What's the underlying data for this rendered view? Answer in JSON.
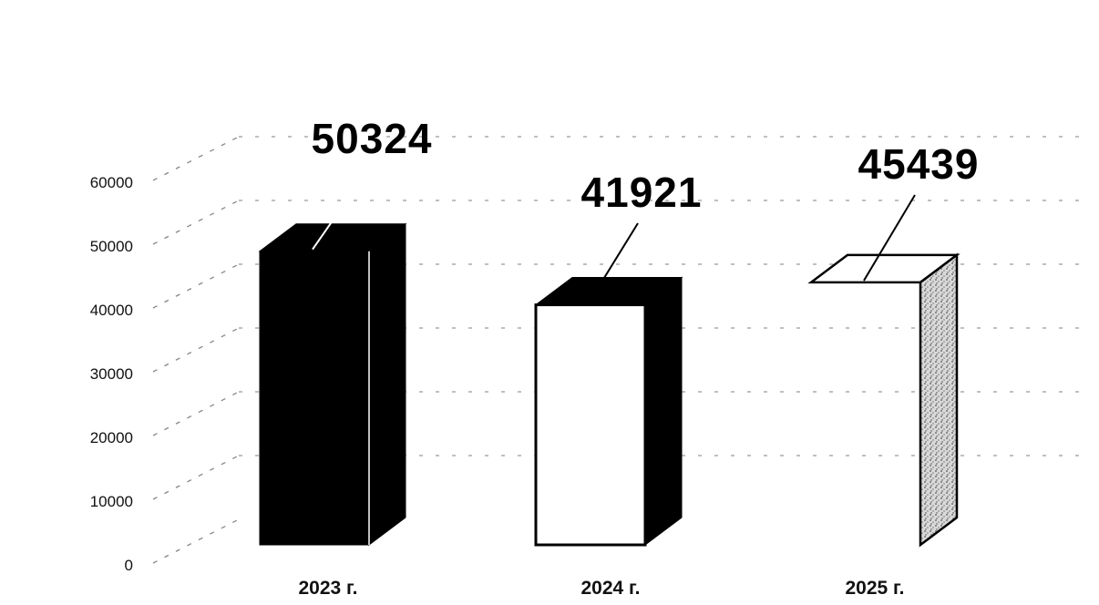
{
  "chart_data": {
    "type": "bar",
    "style": "3d-column",
    "categories": [
      "2023 г.",
      "2024 г.",
      "2025 г."
    ],
    "values": [
      50324,
      41921,
      45439
    ],
    "data_labels": [
      "50324",
      "41921",
      "45439"
    ],
    "y_ticks": [
      "0",
      "10000",
      "20000",
      "30000",
      "40000",
      "50000",
      "60000"
    ],
    "ylim": [
      0,
      60000
    ],
    "grid": true,
    "legend": "none",
    "title": "",
    "xlabel": "",
    "ylabel": "",
    "bar_fills": [
      "black",
      "white",
      "white-front-stippled-side"
    ]
  }
}
